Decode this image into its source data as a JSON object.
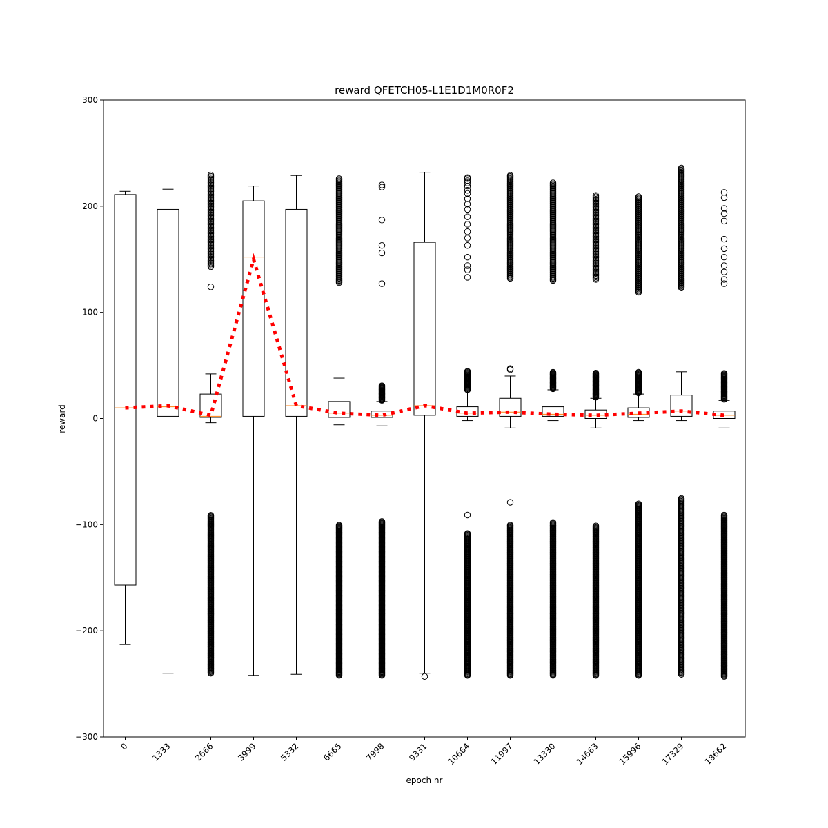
{
  "chart_data": {
    "type": "box",
    "title": "reward QFETCH05-L1E1D1M0R0F2",
    "xlabel": "epoch nr",
    "ylabel": "reward",
    "ylim": [
      -300,
      300
    ],
    "yticks": [
      -300,
      -200,
      -100,
      0,
      100,
      200,
      300
    ],
    "y_tick_labels": [
      "−300",
      "−200",
      "−100",
      "0",
      "100",
      "200",
      "300"
    ],
    "categories": [
      "0",
      "1333",
      "2666",
      "3999",
      "5332",
      "6665",
      "7998",
      "9331",
      "10664",
      "11997",
      "13330",
      "14663",
      "15996",
      "17329",
      "18662"
    ],
    "colors": {
      "box": "#000000",
      "median": "#ff7f0e",
      "mean_line": "#ff0000"
    },
    "boxes": [
      {
        "q1": -157,
        "median": 10,
        "q3": 211,
        "whislo": -213,
        "whishi": 214,
        "fliers_low": [],
        "fliers_high": []
      },
      {
        "q1": 2,
        "median": 11,
        "q3": 197,
        "whislo": -240,
        "whishi": 216,
        "fliers_low": [],
        "fliers_high": []
      },
      {
        "q1": 1,
        "median": 2,
        "q3": 23,
        "whislo": -4,
        "whishi": 42,
        "fliers_low_range": [
          -240,
          -91,
          0.8
        ],
        "fliers_high_range": [
          143,
          230,
          1.2
        ],
        "fliers_high": [
          124
        ]
      },
      {
        "q1": 2,
        "median": 152,
        "q3": 205,
        "whislo": -242,
        "whishi": 219,
        "fliers_low": [],
        "fliers_high": []
      },
      {
        "q1": 2,
        "median": 12,
        "q3": 197,
        "whislo": -241,
        "whishi": 229,
        "fliers_low": [],
        "fliers_high": []
      },
      {
        "q1": 1,
        "median": 5,
        "q3": 16,
        "whislo": -6,
        "whishi": 38,
        "fliers_low_range": [
          -242,
          -100,
          0.7
        ],
        "fliers_high_range": [
          128,
          226,
          1.0
        ]
      },
      {
        "q1": 1,
        "median": 3,
        "q3": 7,
        "whislo": -7,
        "whishi": 16,
        "fliers_low_range": [
          -242,
          -97,
          0.7
        ],
        "fliers_high_range": [
          17,
          31,
          0.6
        ],
        "fliers_high": [
          127,
          156,
          163,
          187,
          218,
          220
        ]
      },
      {
        "q1": 3,
        "median": 12,
        "q3": 166,
        "whislo": -240,
        "whishi": 232,
        "fliers_low": [
          -243
        ],
        "fliers_high": []
      },
      {
        "q1": 2,
        "median": 5,
        "q3": 11,
        "whislo": -2,
        "whishi": 26,
        "fliers_low_range": [
          -242,
          -108,
          0.8
        ],
        "fliers_high_range": [
          27,
          45,
          0.7
        ],
        "fliers_high": [
          133,
          140,
          144,
          152,
          163,
          170,
          176,
          183,
          190,
          197,
          202,
          207,
          212,
          215,
          219,
          222,
          224,
          226,
          227
        ],
        "fliers_low": [
          -91
        ]
      },
      {
        "q1": 2,
        "median": 6,
        "q3": 19,
        "whislo": -9,
        "whishi": 40,
        "fliers_low_range": [
          -242,
          -100,
          0.8
        ],
        "fliers_high_range": [
          132,
          229,
          1.0
        ],
        "fliers_high": [
          46,
          47
        ],
        "fliers_low": [
          -79
        ]
      },
      {
        "q1": 2,
        "median": 4,
        "q3": 11,
        "whislo": -2,
        "whishi": 27,
        "fliers_low_range": [
          -242,
          -98,
          0.8
        ],
        "fliers_high_range": [
          28,
          44,
          0.6
        ],
        "fliers_high_2_range": [
          130,
          222,
          1.0
        ]
      },
      {
        "q1": 0,
        "median": 3,
        "q3": 8,
        "whislo": -9,
        "whishi": 19,
        "fliers_low_range": [
          -242,
          -101,
          0.8
        ],
        "fliers_high_range": [
          20,
          43,
          0.6
        ],
        "fliers_high_2_range": [
          131,
          211,
          1.2
        ]
      },
      {
        "q1": 1,
        "median": 4,
        "q3": 10,
        "whislo": -2,
        "whishi": 23,
        "fliers_low_range": [
          -242,
          -80,
          0.8
        ],
        "fliers_high_range": [
          24,
          44,
          0.7
        ],
        "fliers_high_2_range": [
          119,
          209,
          1.0
        ]
      },
      {
        "q1": 2,
        "median": 7,
        "q3": 22,
        "whislo": -2,
        "whishi": 44,
        "fliers_low_range": [
          -241,
          -75,
          0.9
        ],
        "fliers_high_range": [
          123,
          236,
          1.0
        ]
      },
      {
        "q1": 0,
        "median": 3,
        "q3": 7,
        "whislo": -9,
        "whishi": 17,
        "fliers_low_range": [
          -243,
          -91,
          0.8
        ],
        "fliers_high_range": [
          18,
          43,
          0.7
        ],
        "fliers_high": [
          127,
          131,
          138,
          144,
          152,
          160,
          169,
          186,
          193,
          198,
          208,
          213
        ]
      }
    ],
    "means": [
      10,
      12,
      3,
      150,
      12,
      5,
      3,
      12,
      5,
      6,
      4,
      3,
      5,
      7,
      3
    ],
    "grid": false,
    "legend": "none"
  }
}
